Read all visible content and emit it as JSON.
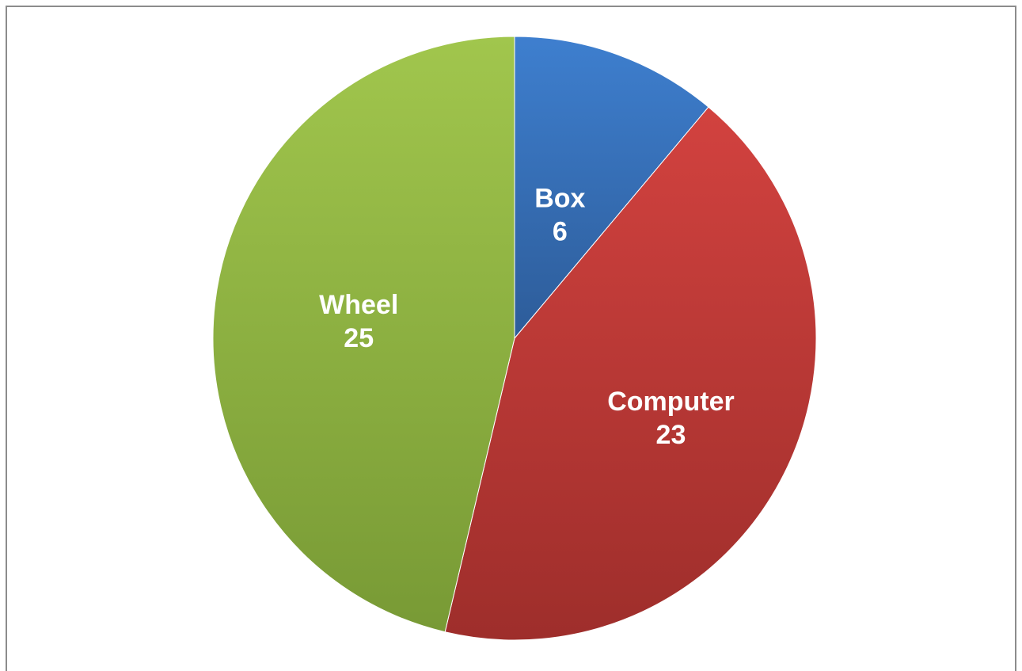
{
  "chart_data": {
    "type": "pie",
    "slices": [
      {
        "label": "Box",
        "value": 6,
        "color": "#3a6fb8"
      },
      {
        "label": "Computer",
        "value": 23,
        "color": "#bb3a36"
      },
      {
        "label": "Wheel",
        "value": 25,
        "color": "#8cae45"
      }
    ],
    "start_angle_deg": 0,
    "direction": "clockwise",
    "data_labels": "category-and-value"
  }
}
